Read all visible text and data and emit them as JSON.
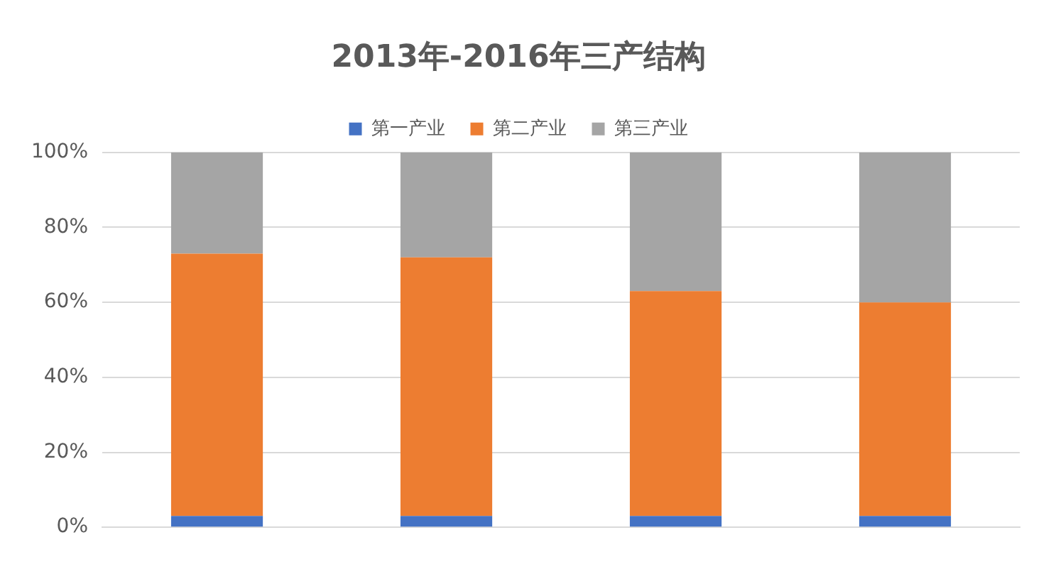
{
  "chart_data": {
    "type": "bar",
    "title": "2013年-2016年三产结构",
    "stacked": true,
    "categories": [
      null,
      null,
      null,
      null
    ],
    "series": [
      {
        "name": "第一产业",
        "color": "#4472c4",
        "values": [
          3,
          3,
          3,
          3
        ]
      },
      {
        "name": "第二产业",
        "color": "#ed7d31",
        "values": [
          70,
          69,
          60,
          57
        ]
      },
      {
        "name": "第三产业",
        "color": "#a5a5a5",
        "values": [
          27,
          28,
          37,
          40
        ]
      }
    ],
    "ylim": [
      0,
      100
    ],
    "yticks": [
      {
        "value": 0,
        "label": "0%"
      },
      {
        "value": 20,
        "label": "20%"
      },
      {
        "value": 40,
        "label": "40%"
      },
      {
        "value": 60,
        "label": "60%"
      },
      {
        "value": 80,
        "label": "80%"
      },
      {
        "value": 100,
        "label": "100%"
      }
    ],
    "grid": "y",
    "legend": "top"
  }
}
